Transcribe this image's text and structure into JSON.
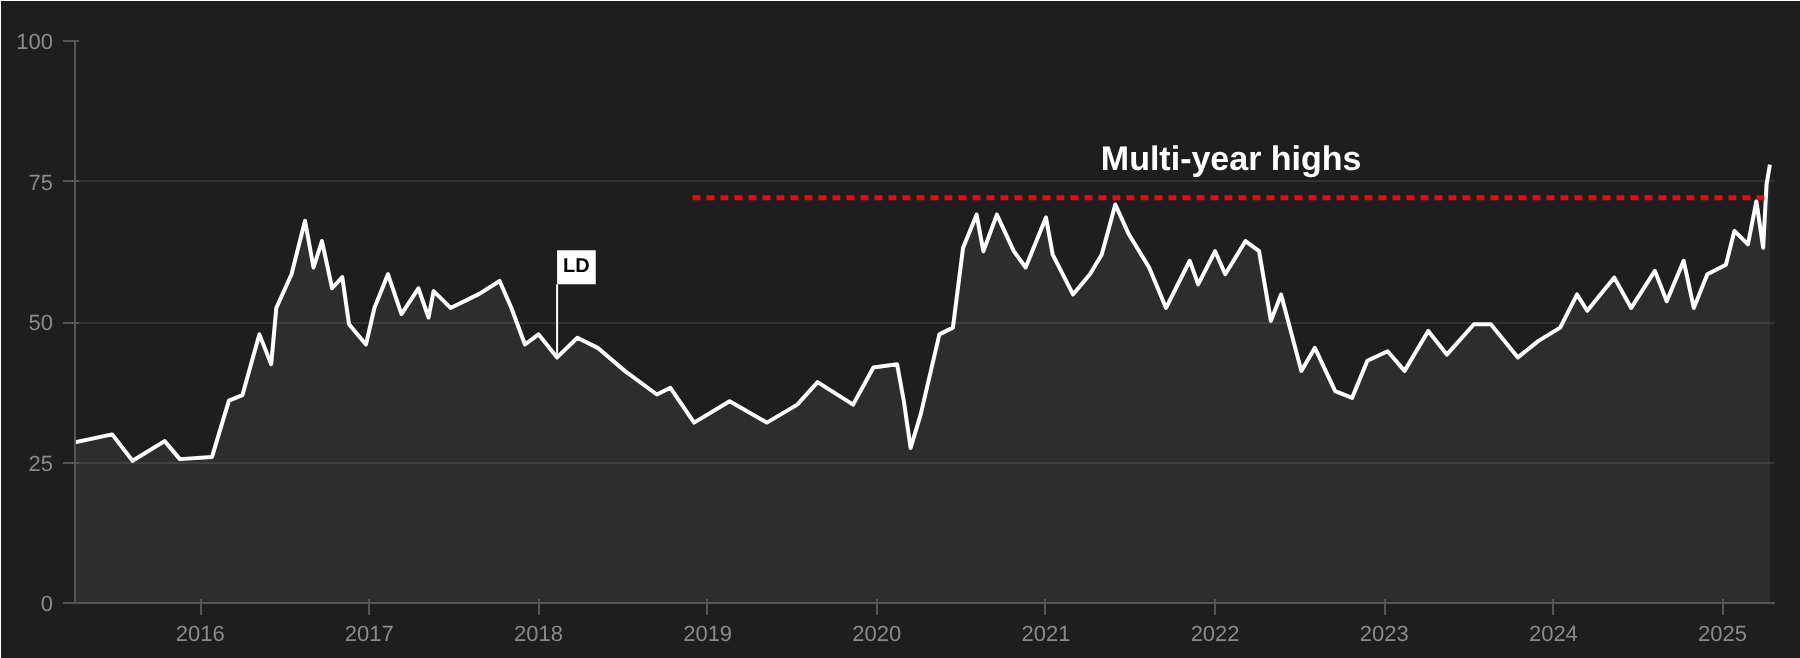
{
  "chart_data": {
    "type": "area",
    "xlim": [
      2015.26,
      2025.31
    ],
    "ylim": [
      0,
      100
    ],
    "xticks": [
      2016,
      2017,
      2018,
      2019,
      2020,
      2021,
      2022,
      2023,
      2024,
      2025
    ],
    "yticks": [
      0,
      25,
      50,
      75,
      100
    ],
    "grid": "y",
    "line_style": "solid",
    "series": [
      {
        "color": "#ffffff",
        "x": [
          2015.26,
          2015.48,
          2015.6,
          2015.79,
          2015.88,
          2016.07,
          2016.17,
          2016.25,
          2016.35,
          2016.42,
          2016.45,
          2016.54,
          2016.62,
          2016.67,
          2016.72,
          2016.78,
          2016.84,
          2016.88,
          2016.98,
          2017.03,
          2017.11,
          2017.19,
          2017.29,
          2017.35,
          2017.38,
          2017.48,
          2017.65,
          2017.77,
          2017.84,
          2017.92,
          2018.0,
          2018.11,
          2018.23,
          2018.35,
          2018.51,
          2018.7,
          2018.78,
          2018.92,
          2019.13,
          2019.35,
          2019.53,
          2019.65,
          2019.86,
          2019.98,
          2020.12,
          2020.16,
          2020.2,
          2020.26,
          2020.37,
          2020.45,
          2020.51,
          2020.59,
          2020.63,
          2020.71,
          2020.81,
          2020.88,
          2021.0,
          2021.04,
          2021.16,
          2021.26,
          2021.33,
          2021.41,
          2021.49,
          2021.61,
          2021.71,
          2021.85,
          2021.9,
          2022.0,
          2022.06,
          2022.18,
          2022.26,
          2022.33,
          2022.39,
          2022.51,
          2022.59,
          2022.71,
          2022.81,
          2022.9,
          2023.02,
          2023.12,
          2023.26,
          2023.37,
          2023.53,
          2023.63,
          2023.79,
          2023.91,
          2024.04,
          2024.14,
          2024.2,
          2024.36,
          2024.46,
          2024.6,
          2024.67,
          2024.77,
          2024.83,
          2024.91,
          2025.02,
          2025.07,
          2025.15,
          2025.2,
          2025.24,
          2025.26,
          2025.28
        ],
        "values": [
          28.6,
          30,
          25.3,
          28.8,
          25.6,
          26,
          36,
          37,
          47.8,
          42.5,
          52.5,
          58.5,
          68,
          59.7,
          64.4,
          56,
          58,
          49.6,
          46,
          52.5,
          58.5,
          51.4,
          56,
          50.8,
          55.5,
          52.5,
          55,
          57.3,
          52.5,
          46,
          47.8,
          43.7,
          47.2,
          45.4,
          41.3,
          37.1,
          38.3,
          32.1,
          35.9,
          32.1,
          35.3,
          39.3,
          35.3,
          41.9,
          42.5,
          35.9,
          27.6,
          33.6,
          47.8,
          49,
          63.2,
          69.1,
          62.6,
          69.1,
          62.6,
          59.7,
          68.6,
          62,
          54.9,
          58.5,
          62,
          70.9,
          65.6,
          59.7,
          52.5,
          60.9,
          56.7,
          62.6,
          58.5,
          64.4,
          62.6,
          50.2,
          54.9,
          41.3,
          45.4,
          37.7,
          36.5,
          43.1,
          44.8,
          41.3,
          48.4,
          44.2,
          49.6,
          49.6,
          43.7,
          46.6,
          49,
          54.9,
          52,
          57.9,
          52.5,
          59.1,
          53.7,
          60.9,
          52.5,
          58.5,
          60.2,
          66.2,
          63.8,
          71.5,
          63.2,
          74.5,
          78
        ]
      },
      {
        "type": "line",
        "color": "#e50914",
        "line_style": "dashed",
        "x": [
          2018.91,
          2025.28
        ],
        "values": [
          72.1,
          72.1
        ]
      }
    ],
    "annotations": [
      "Multi-year highs",
      {
        "text": "LD",
        "x": 2018.11,
        "y": 43.7
      }
    ]
  }
}
